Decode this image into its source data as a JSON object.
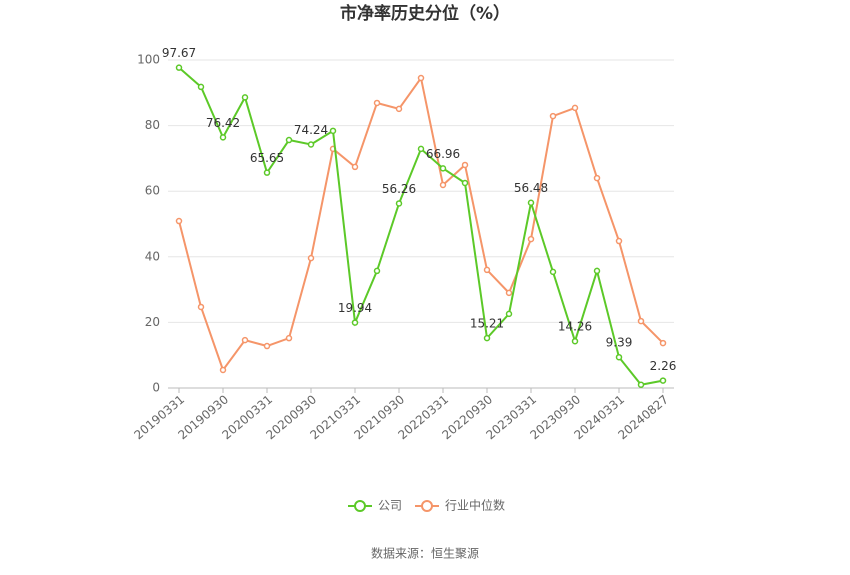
{
  "chart_data": {
    "type": "line",
    "title": "市净率历史分位（%）",
    "categories": [
      "20190331",
      null,
      "20190930",
      null,
      "20200331",
      null,
      "20200930",
      null,
      "20210331",
      null,
      "20210930",
      null,
      "20220331",
      null,
      "20220930",
      null,
      "20230331",
      null,
      "20230930",
      null,
      "20240331",
      null,
      "20240827"
    ],
    "series": [
      {
        "name": "公司",
        "color": "#5cc928",
        "values": [
          97.67,
          91.8,
          76.42,
          88.6,
          65.65,
          75.6,
          74.24,
          78.4,
          19.94,
          35.7,
          56.26,
          72.9,
          66.96,
          62.5,
          15.21,
          22.6,
          56.48,
          35.4,
          14.26,
          35.7,
          9.39,
          1.0,
          2.26
        ]
      },
      {
        "name": "行业中位数",
        "color": "#f59569",
        "values": [
          50.9,
          24.7,
          5.5,
          14.6,
          12.8,
          15.2,
          39.6,
          72.9,
          67.4,
          86.9,
          85.1,
          94.5,
          61.9,
          68.0,
          36.0,
          29.0,
          45.4,
          82.9,
          85.4,
          64.0,
          44.8,
          20.4,
          13.7
        ]
      }
    ],
    "ylim": [
      0,
      100
    ],
    "yticks": [
      0,
      20,
      40,
      60,
      80,
      100
    ],
    "grid": true,
    "legend": "bottom",
    "source": "数据来源：恒生聚源"
  }
}
